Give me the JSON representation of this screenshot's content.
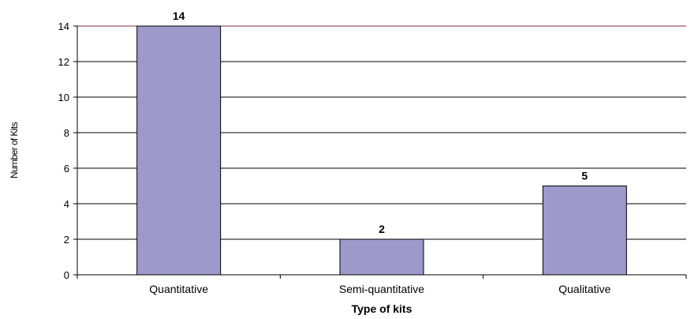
{
  "chart_data": {
    "type": "bar",
    "categories": [
      "Quantitative",
      "Semi-quantitative",
      "Qualitative"
    ],
    "values": [
      14,
      2,
      5
    ],
    "data_labels": [
      "14",
      "2",
      "5"
    ],
    "xlabel": "Type of kits",
    "ylabel": "Number of Kits",
    "ylim": [
      0,
      14
    ],
    "yticks": [
      0,
      2,
      4,
      6,
      8,
      10,
      12,
      14
    ],
    "grid": true,
    "legend": "none",
    "colors": {
      "bar_fill": "#9d99cb",
      "bar_stroke": "#000000",
      "gridline": "#000000",
      "top_gridline": "#8b2b3a"
    }
  }
}
